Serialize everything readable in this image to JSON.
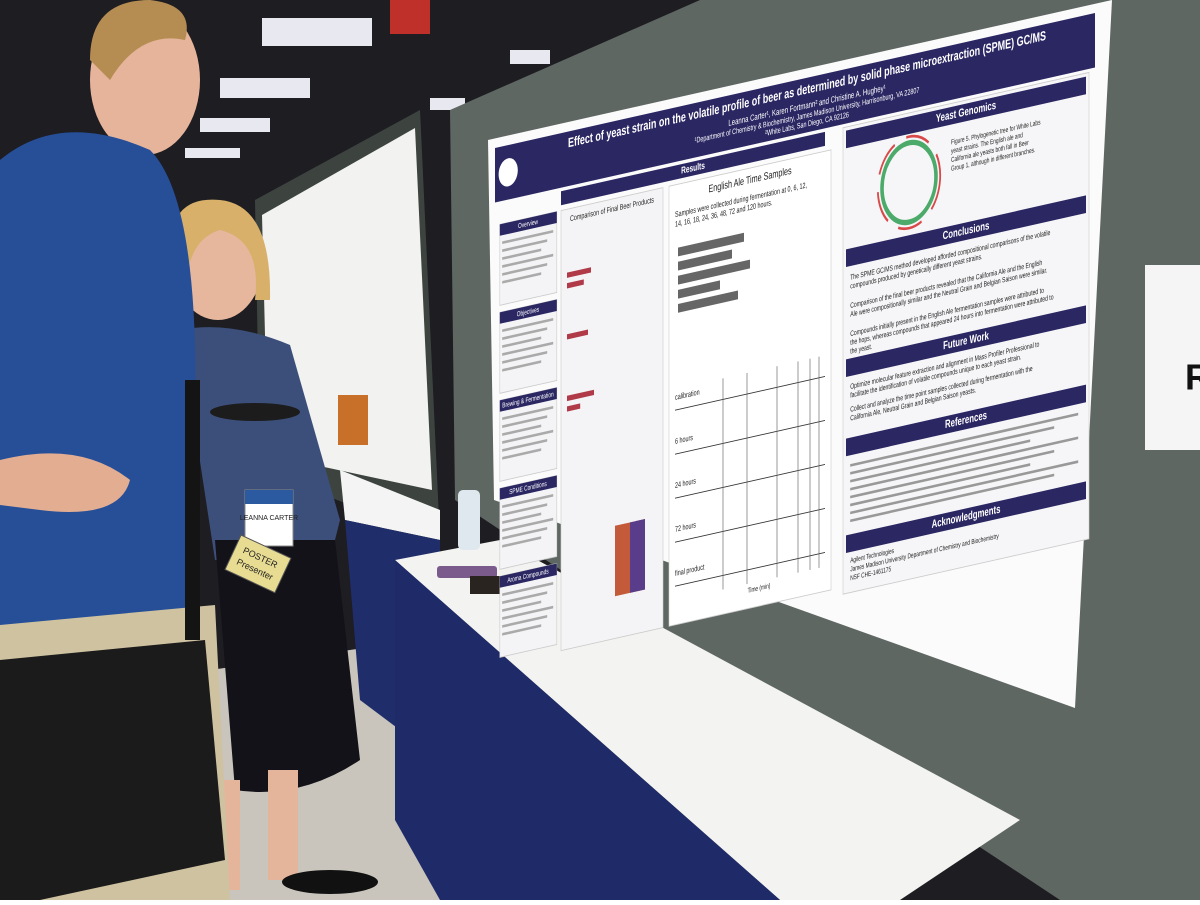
{
  "poster": {
    "title": "Effect of yeast strain on the volatile profile of beer as determined by solid phase microextraction (SPME) GC/MS",
    "authors": "Leanna Carter¹, Karen Fortmann² and Christine A. Hughey¹",
    "affiliations": [
      "¹Department of Chemistry & Biochemistry, James Madison University, Harrisonburg, VA 22807",
      "²White Labs, San Diego, CA 92126"
    ],
    "results_heading": "Results",
    "left_sections": [
      "Overview",
      "Objectives",
      "Brewing & Fermentation",
      "SPME Conditions",
      "Aroma Compounds"
    ],
    "comparison": {
      "heading": "Comparison of Final Beer Products"
    },
    "time_samples": {
      "heading": "English Ale Time Samples",
      "text": "Samples were collected during fermentation at 0, 6, 12, 14, 16, 18, 24, 36, 48, 72 and 120 hours.",
      "chart_labels": [
        "calibration",
        "6 hours",
        "24 hours",
        "72 hours",
        "final product"
      ],
      "x_axis": "Time (min)"
    },
    "yeast_genomics": {
      "heading": "Yeast Genomics",
      "caption": "Figure 5. Phylogenetic tree for White Labs yeast strains. The English ale and California ale yeasts both fall in Beer Group 1, although in different branches."
    },
    "conclusions": {
      "heading": "Conclusions",
      "bullets": [
        "The SPME GC/MS method developed afforded compositional comparisons of the volatile compounds produced by genetically different yeast strains.",
        "Comparison of the final beer products revealed that the California Ale and the English Ale were compositionally similar and the Neutral Grain and Belgian Saison were similar.",
        "Compounds initially present in the English Ale fermentation samples were attributed to the hops, whereas compounds that appeared 24 hours into fermentation were attributed to the yeast."
      ]
    },
    "future_work": {
      "heading": "Future Work",
      "bullets": [
        "Optimize molecular feature extraction and alignment in Mass Profiler Professional to facilitate the identification of volatile compounds unique to each yeast strain.",
        "Collect and analyze the time point samples collected during fermentation with the California Ale, Neutral Grain and Belgian Saison yeasts."
      ]
    },
    "references": {
      "heading": "References"
    },
    "acknowledgments": {
      "heading": "Acknowledgments",
      "lines": [
        "Agilent Technologies",
        "James Madison University Department of Chemistry and Biochemistry",
        "NSF CHE-1461175"
      ]
    }
  },
  "badge": {
    "name": "LEANNA CARTER",
    "ribbon": [
      "POSTER",
      "Presenter"
    ]
  },
  "sign": "R"
}
